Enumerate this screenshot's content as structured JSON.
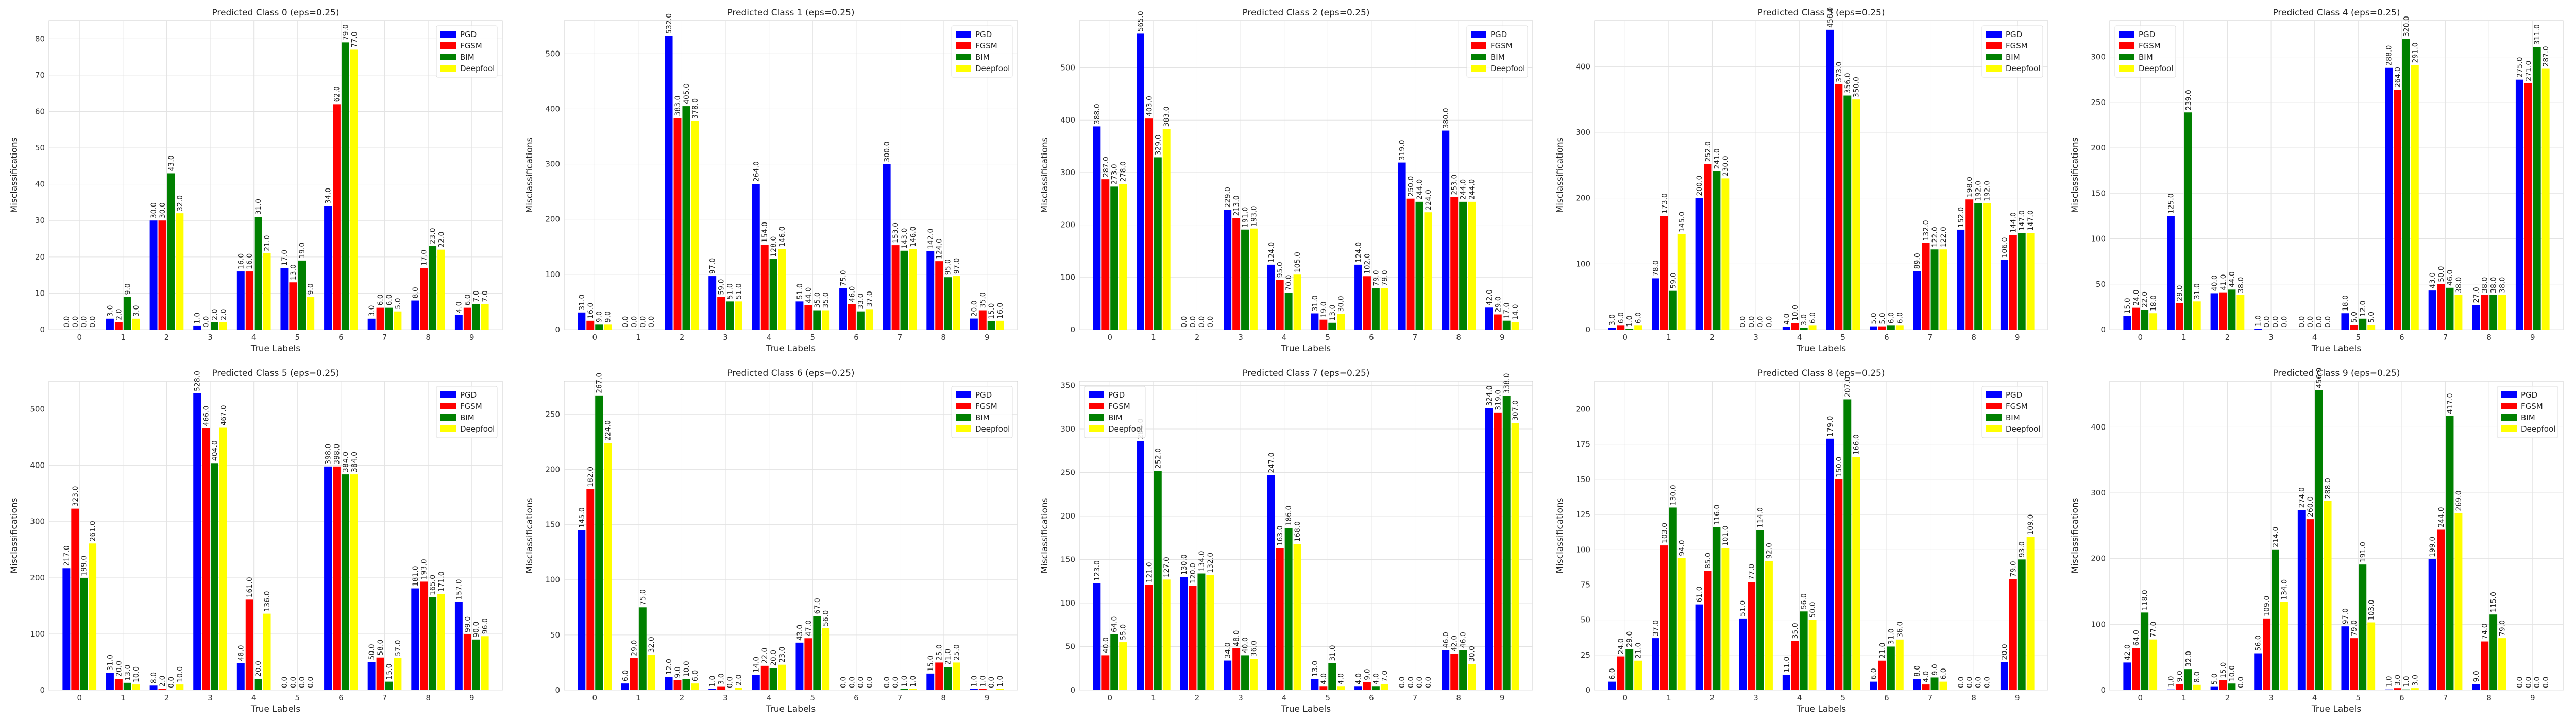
{
  "chart_data": [
    {
      "type": "bar",
      "title": "Predicted Class 0 (eps=0.25)",
      "xlabel": "True Labels",
      "ylabel": "Misclassifications",
      "categories": [
        "0",
        "1",
        "2",
        "3",
        "4",
        "5",
        "6",
        "7",
        "8",
        "9"
      ],
      "ylim": [
        0,
        85
      ],
      "yticks": [
        0,
        10,
        20,
        30,
        40,
        50,
        60,
        70,
        80
      ],
      "legend": "top-right",
      "grid": true,
      "series": [
        {
          "name": "PGD",
          "values": [
            0.0,
            3.0,
            30.0,
            1.0,
            16.0,
            17.0,
            34.0,
            3.0,
            8.0,
            4.0
          ]
        },
        {
          "name": "FGSM",
          "values": [
            0.0,
            2.0,
            30.0,
            0.0,
            16.0,
            13.0,
            62.0,
            6.0,
            17.0,
            6.0
          ]
        },
        {
          "name": "BIM",
          "values": [
            0.0,
            9.0,
            43.0,
            2.0,
            31.0,
            19.0,
            79.0,
            6.0,
            23.0,
            7.0
          ]
        },
        {
          "name": "Deepfool",
          "values": [
            0.0,
            3.0,
            32.0,
            2.0,
            21.0,
            9.0,
            77.0,
            5.0,
            22.0,
            7.0
          ]
        }
      ]
    },
    {
      "type": "bar",
      "title": "Predicted Class 1 (eps=0.25)",
      "xlabel": "True Labels",
      "ylabel": "Misclassifications",
      "categories": [
        "0",
        "1",
        "2",
        "3",
        "4",
        "5",
        "6",
        "7",
        "8",
        "9"
      ],
      "ylim": [
        0,
        560
      ],
      "yticks": [
        0,
        100,
        200,
        300,
        400,
        500
      ],
      "legend": "top-right",
      "grid": true,
      "series": [
        {
          "name": "PGD",
          "values": [
            31.0,
            0.0,
            532.0,
            97.0,
            264.0,
            51.0,
            75.0,
            300.0,
            142.0,
            20.0
          ]
        },
        {
          "name": "FGSM",
          "values": [
            16.0,
            0.0,
            383.0,
            59.0,
            154.0,
            44.0,
            46.0,
            153.0,
            124.0,
            35.0
          ]
        },
        {
          "name": "BIM",
          "values": [
            9.0,
            0.0,
            405.0,
            51.0,
            128.0,
            35.0,
            33.0,
            143.0,
            95.0,
            15.0
          ]
        },
        {
          "name": "Deepfool",
          "values": [
            9.0,
            0.0,
            378.0,
            51.0,
            146.0,
            35.0,
            37.0,
            146.0,
            97.0,
            16.0
          ]
        }
      ]
    },
    {
      "type": "bar",
      "title": "Predicted Class 2 (eps=0.25)",
      "xlabel": "True Labels",
      "ylabel": "Misclassifications",
      "categories": [
        "0",
        "1",
        "2",
        "3",
        "4",
        "5",
        "6",
        "7",
        "8",
        "9"
      ],
      "ylim": [
        0,
        590
      ],
      "yticks": [
        0,
        100,
        200,
        300,
        400,
        500
      ],
      "legend": "top-right",
      "grid": true,
      "series": [
        {
          "name": "PGD",
          "values": [
            388.0,
            565.0,
            0.0,
            229.0,
            124.0,
            31.0,
            124.0,
            319.0,
            380.0,
            42.0
          ]
        },
        {
          "name": "FGSM",
          "values": [
            287.0,
            403.0,
            0.0,
            213.0,
            95.0,
            19.0,
            102.0,
            250.0,
            253.0,
            29.0
          ]
        },
        {
          "name": "BIM",
          "values": [
            273.0,
            329.0,
            0.0,
            191.0,
            70.0,
            13.0,
            79.0,
            244.0,
            244.0,
            17.0
          ]
        },
        {
          "name": "Deepfool",
          "values": [
            278.0,
            383.0,
            0.0,
            193.0,
            105.0,
            30.0,
            79.0,
            224.0,
            244.0,
            14.0
          ]
        }
      ]
    },
    {
      "type": "bar",
      "title": "Predicted Class 3 (eps=0.25)",
      "xlabel": "True Labels",
      "ylabel": "Misclassifications",
      "categories": [
        "0",
        "1",
        "2",
        "3",
        "4",
        "5",
        "6",
        "7",
        "8",
        "9"
      ],
      "ylim": [
        0,
        470
      ],
      "yticks": [
        0,
        100,
        200,
        300,
        400
      ],
      "legend": "top-right",
      "grid": true,
      "series": [
        {
          "name": "PGD",
          "values": [
            3.0,
            78.0,
            200.0,
            0.0,
            4.0,
            456.0,
            5.0,
            89.0,
            152.0,
            106.0
          ]
        },
        {
          "name": "FGSM",
          "values": [
            6.0,
            173.0,
            252.0,
            0.0,
            10.0,
            373.0,
            5.0,
            132.0,
            198.0,
            144.0
          ]
        },
        {
          "name": "BIM",
          "values": [
            1.0,
            59.0,
            241.0,
            0.0,
            3.0,
            356.0,
            6.0,
            122.0,
            192.0,
            147.0
          ]
        },
        {
          "name": "Deepfool",
          "values": [
            6.0,
            145.0,
            230.0,
            0.0,
            6.0,
            350.0,
            6.0,
            122.0,
            192.0,
            147.0
          ]
        }
      ]
    },
    {
      "type": "bar",
      "title": "Predicted Class 4 (eps=0.25)",
      "xlabel": "True Labels",
      "ylabel": "Misclassifications",
      "categories": [
        "0",
        "1",
        "2",
        "3",
        "4",
        "5",
        "6",
        "7",
        "8",
        "9"
      ],
      "ylim": [
        0,
        340
      ],
      "yticks": [
        0,
        50,
        100,
        150,
        200,
        250,
        300
      ],
      "legend": "top-left",
      "grid": true,
      "series": [
        {
          "name": "PGD",
          "values": [
            15.0,
            125.0,
            40.0,
            1.0,
            0.0,
            18.0,
            288.0,
            43.0,
            27.0,
            275.0
          ]
        },
        {
          "name": "FGSM",
          "values": [
            24.0,
            29.0,
            41.0,
            0.0,
            0.0,
            5.0,
            264.0,
            50.0,
            38.0,
            271.0
          ]
        },
        {
          "name": "BIM",
          "values": [
            22.0,
            239.0,
            44.0,
            0.0,
            0.0,
            12.0,
            320.0,
            46.0,
            38.0,
            311.0
          ]
        },
        {
          "name": "Deepfool",
          "values": [
            18.0,
            31.0,
            38.0,
            0.0,
            0.0,
            5.0,
            291.0,
            38.0,
            38.0,
            287.0
          ]
        }
      ]
    },
    {
      "type": "bar",
      "title": "Predicted Class 5 (eps=0.25)",
      "xlabel": "True Labels",
      "ylabel": "Misclassifications",
      "categories": [
        "0",
        "1",
        "2",
        "3",
        "4",
        "5",
        "6",
        "7",
        "8",
        "9"
      ],
      "ylim": [
        0,
        550
      ],
      "yticks": [
        0,
        100,
        200,
        300,
        400,
        500
      ],
      "legend": "top-right",
      "grid": true,
      "series": [
        {
          "name": "PGD",
          "values": [
            217.0,
            31.0,
            8.0,
            528.0,
            48.0,
            0.0,
            398.0,
            50.0,
            181.0,
            157.0
          ]
        },
        {
          "name": "FGSM",
          "values": [
            323.0,
            20.0,
            2.0,
            466.0,
            161.0,
            0.0,
            398.0,
            58.0,
            193.0,
            99.0
          ]
        },
        {
          "name": "BIM",
          "values": [
            199.0,
            13.0,
            0.0,
            404.0,
            20.0,
            0.0,
            384.0,
            15.0,
            165.0,
            90.0
          ]
        },
        {
          "name": "Deepfool",
          "values": [
            261.0,
            10.0,
            10.0,
            467.0,
            136.0,
            0.0,
            384.0,
            57.0,
            171.0,
            96.0
          ]
        }
      ]
    },
    {
      "type": "bar",
      "title": "Predicted Class 6 (eps=0.25)",
      "xlabel": "True Labels",
      "ylabel": "Misclassifications",
      "categories": [
        "0",
        "1",
        "2",
        "3",
        "4",
        "5",
        "6",
        "7",
        "8",
        "9"
      ],
      "ylim": [
        0,
        280
      ],
      "yticks": [
        0,
        50,
        100,
        150,
        200,
        250
      ],
      "legend": "top-right",
      "grid": true,
      "series": [
        {
          "name": "PGD",
          "values": [
            145.0,
            6.0,
            12.0,
            1.0,
            14.0,
            43.0,
            0.0,
            0.0,
            15.0,
            1.0
          ]
        },
        {
          "name": "FGSM",
          "values": [
            182.0,
            29.0,
            9.0,
            3.0,
            22.0,
            47.0,
            0.0,
            0.0,
            25.0,
            1.0
          ]
        },
        {
          "name": "BIM",
          "values": [
            267.0,
            75.0,
            10.0,
            0.0,
            20.0,
            67.0,
            0.0,
            1.0,
            21.0,
            0.0
          ]
        },
        {
          "name": "Deepfool",
          "values": [
            224.0,
            32.0,
            6.0,
            2.0,
            23.0,
            56.0,
            0.0,
            1.0,
            25.0,
            1.0
          ]
        }
      ]
    },
    {
      "type": "bar",
      "title": "Predicted Class 7 (eps=0.25)",
      "xlabel": "True Labels",
      "ylabel": "Misclassifications",
      "categories": [
        "0",
        "1",
        "2",
        "3",
        "4",
        "5",
        "6",
        "7",
        "8",
        "9"
      ],
      "ylim": [
        0,
        355
      ],
      "yticks": [
        0,
        50,
        100,
        150,
        200,
        250,
        300,
        350
      ],
      "legend": "top-left",
      "grid": true,
      "series": [
        {
          "name": "PGD",
          "values": [
            123.0,
            286.0,
            130.0,
            34.0,
            247.0,
            13.0,
            4.0,
            0.0,
            46.0,
            324.0
          ]
        },
        {
          "name": "FGSM",
          "values": [
            40.0,
            121.0,
            120.0,
            48.0,
            163.0,
            4.0,
            9.0,
            0.0,
            42.0,
            319.0
          ]
        },
        {
          "name": "BIM",
          "values": [
            64.0,
            252.0,
            134.0,
            40.0,
            186.0,
            31.0,
            4.0,
            0.0,
            46.0,
            338.0
          ]
        },
        {
          "name": "Deepfool",
          "values": [
            55.0,
            127.0,
            132.0,
            36.0,
            168.0,
            4.0,
            7.0,
            0.0,
            30.0,
            307.0
          ]
        }
      ]
    },
    {
      "type": "bar",
      "title": "Predicted Class 8 (eps=0.25)",
      "xlabel": "True Labels",
      "ylabel": "Misclassifications",
      "categories": [
        "0",
        "1",
        "2",
        "3",
        "4",
        "5",
        "6",
        "7",
        "8",
        "9"
      ],
      "ylim": [
        0,
        220
      ],
      "yticks": [
        0,
        25,
        50,
        75,
        100,
        125,
        150,
        175,
        200
      ],
      "legend": "top-right",
      "grid": true,
      "series": [
        {
          "name": "PGD",
          "values": [
            6.0,
            37.0,
            61.0,
            51.0,
            11.0,
            179.0,
            6.0,
            8.0,
            0.0,
            20.0
          ]
        },
        {
          "name": "FGSM",
          "values": [
            24.0,
            103.0,
            85.0,
            77.0,
            35.0,
            150.0,
            21.0,
            4.0,
            0.0,
            79.0
          ]
        },
        {
          "name": "BIM",
          "values": [
            29.0,
            130.0,
            116.0,
            114.0,
            56.0,
            207.0,
            31.0,
            9.0,
            0.0,
            93.0
          ]
        },
        {
          "name": "Deepfool",
          "values": [
            21.0,
            94.0,
            101.0,
            92.0,
            50.0,
            166.0,
            36.0,
            6.0,
            0.0,
            109.0
          ]
        }
      ]
    },
    {
      "type": "bar",
      "title": "Predicted Class 9 (eps=0.25)",
      "xlabel": "True Labels",
      "ylabel": "Misclassifications",
      "categories": [
        "0",
        "1",
        "2",
        "3",
        "4",
        "5",
        "6",
        "7",
        "8",
        "9"
      ],
      "ylim": [
        0,
        470
      ],
      "yticks": [
        0,
        100,
        200,
        300,
        400
      ],
      "legend": "top-right",
      "grid": true,
      "series": [
        {
          "name": "PGD",
          "values": [
            42.0,
            1.0,
            5.0,
            56.0,
            274.0,
            97.0,
            1.0,
            199.0,
            9.0,
            0.0
          ]
        },
        {
          "name": "FGSM",
          "values": [
            64.0,
            9.0,
            15.0,
            109.0,
            260.0,
            79.0,
            3.0,
            244.0,
            74.0,
            0.0
          ]
        },
        {
          "name": "BIM",
          "values": [
            118.0,
            32.0,
            10.0,
            214.0,
            456.0,
            191.0,
            1.0,
            417.0,
            115.0,
            0.0
          ]
        },
        {
          "name": "Deepfool",
          "values": [
            77.0,
            8.0,
            0.0,
            134.0,
            288.0,
            103.0,
            3.0,
            269.0,
            79.0,
            0.0
          ]
        }
      ]
    }
  ],
  "colors": {
    "PGD": "#0000ff",
    "FGSM": "#ff0000",
    "BIM": "#008000",
    "Deepfool": "#ffff00"
  }
}
